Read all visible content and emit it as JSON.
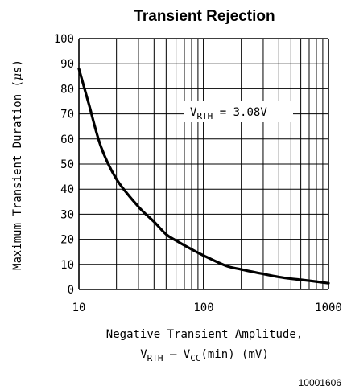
{
  "chart_data": {
    "type": "line",
    "title": "Transient Rejection",
    "xlabel_line1": "Negative Transient Amplitude,",
    "xlabel_line2": {
      "v": "V",
      "rth": "RTH",
      "minus": " – V",
      "cc": "CC",
      "tail": "(min) (mV)"
    },
    "ylabel": {
      "prefix": "Maximum Transient Duration (",
      "mu": "μ",
      "suffix": "s)"
    },
    "xscale": "log",
    "xlim": [
      10,
      1000
    ],
    "ylim": [
      0,
      100
    ],
    "x_tick_labels": [
      "10",
      "100",
      "1000"
    ],
    "y_tick_labels": [
      "0",
      "10",
      "20",
      "30",
      "40",
      "50",
      "60",
      "70",
      "80",
      "90",
      "100"
    ],
    "grid": true,
    "annotation": {
      "v": "V",
      "sub": "RTH",
      "rest": " = 3.08V"
    },
    "series": [
      {
        "x": [
          10,
          12,
          15,
          20,
          30,
          40,
          50,
          60,
          80,
          100,
          150,
          200,
          300,
          400,
          500,
          700,
          1000
        ],
        "values": [
          88,
          74,
          57,
          44,
          33,
          27,
          22,
          19.5,
          16,
          13.5,
          9.5,
          8,
          6.2,
          5,
          4.3,
          3.5,
          2.5
        ]
      }
    ]
  },
  "figure_code": "10001606",
  "colors": {
    "line": "#000000",
    "grid": "#000000",
    "background": "#ffffff"
  }
}
